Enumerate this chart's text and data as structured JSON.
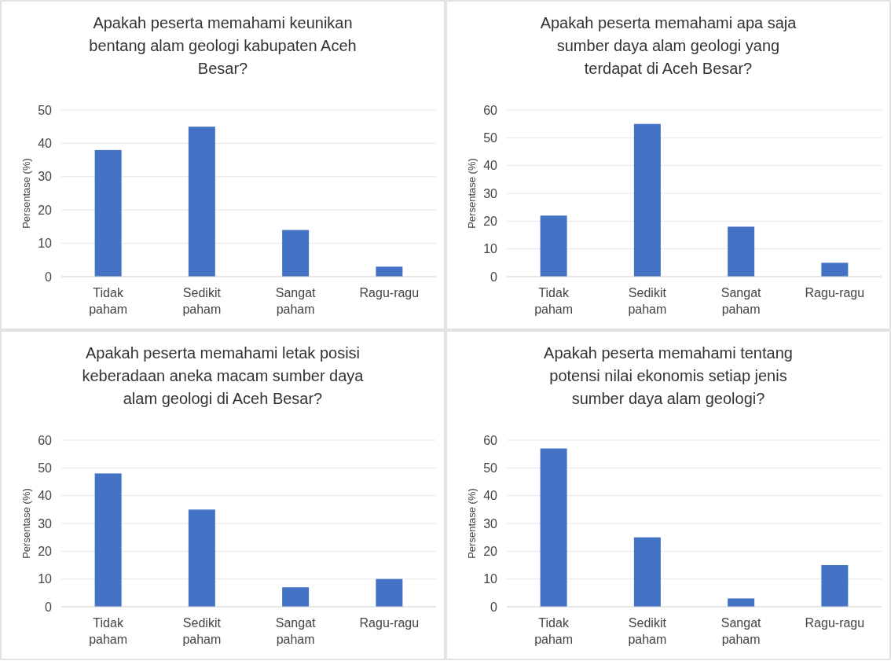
{
  "chart_data": [
    {
      "type": "bar",
      "title": "Apakah peserta memahami keunikan bentang alam geologi kabupaten Aceh Besar?",
      "ylabel": "Persentase (%)",
      "categories": [
        "Tidak paham",
        "Sedikit paham",
        "Sangat paham",
        "Ragu-ragu"
      ],
      "values": [
        38,
        45,
        14,
        3
      ],
      "color": "#4472c4",
      "ylim": [
        0,
        50
      ],
      "yticks": [
        0,
        10,
        20,
        30,
        40,
        50
      ],
      "grid": "y"
    },
    {
      "type": "bar",
      "title": "Apakah peserta memahami apa saja sumber daya alam geologi yang terdapat di Aceh Besar?",
      "ylabel": "Persentase (%)",
      "categories": [
        "Tidak paham",
        "Sedikit paham",
        "Sangat paham",
        "Ragu-ragu"
      ],
      "values": [
        22,
        55,
        18,
        5
      ],
      "color": "#4472c4",
      "ylim": [
        0,
        60
      ],
      "yticks": [
        0,
        10,
        20,
        30,
        40,
        50,
        60
      ],
      "grid": "y"
    },
    {
      "type": "bar",
      "title": "Apakah peserta memahami letak posisi keberadaan aneka macam sumber daya alam geologi di Aceh Besar?",
      "ylabel": "Persentase (%)",
      "categories": [
        "Tidak paham",
        "Sedikit paham",
        "Sangat paham",
        "Ragu-ragu"
      ],
      "values": [
        48,
        35,
        7,
        10
      ],
      "color": "#4472c4",
      "ylim": [
        0,
        60
      ],
      "yticks": [
        0,
        10,
        20,
        30,
        40,
        50,
        60
      ],
      "grid": "y"
    },
    {
      "type": "bar",
      "title": "Apakah peserta memahami tentang potensi nilai ekonomis setiap jenis sumber daya alam geologi?",
      "ylabel": "Persentase (%)",
      "categories": [
        "Tidak paham",
        "Sedikit paham",
        "Sangat paham",
        "Ragu-ragu"
      ],
      "values": [
        57,
        25,
        3,
        15
      ],
      "color": "#4472c4",
      "ylim": [
        0,
        60
      ],
      "yticks": [
        0,
        10,
        20,
        30,
        40,
        50,
        60
      ],
      "grid": "y"
    }
  ]
}
